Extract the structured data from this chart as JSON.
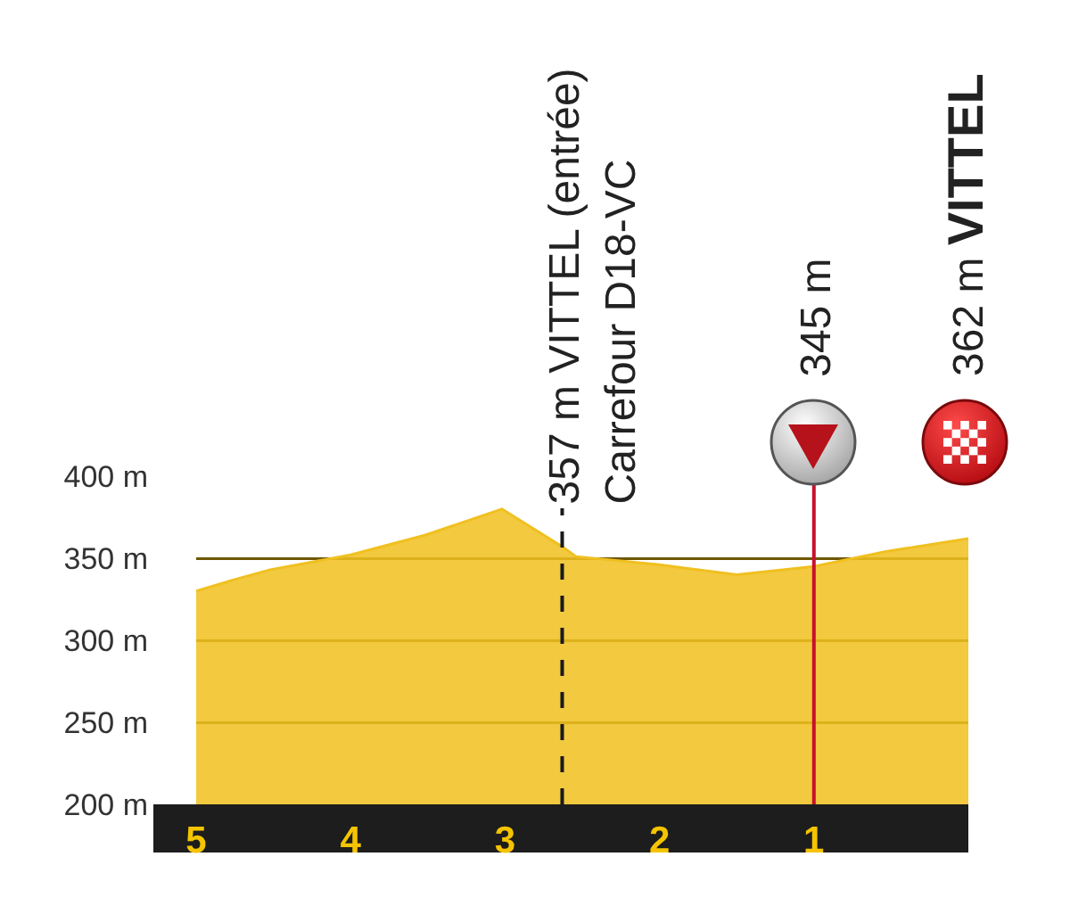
{
  "chart_data": {
    "type": "area",
    "x": [
      5,
      4.75,
      4.52,
      4.0,
      3.52,
      3.02,
      2.63,
      2.54,
      2.0,
      1.5,
      1.0,
      0.54,
      0
    ],
    "values": [
      330,
      337,
      343,
      352,
      364,
      380,
      357,
      351,
      346,
      340,
      345,
      354,
      362
    ],
    "color": "#f0c020",
    "xlim": [
      5,
      0
    ],
    "xticks": [
      5,
      4,
      3,
      2,
      1
    ],
    "ylim": [
      200,
      400
    ],
    "yticks": [
      {
        "value": 200,
        "label": "200 m"
      },
      {
        "value": 250,
        "label": "250 m"
      },
      {
        "value": 300,
        "label": "300 m"
      },
      {
        "value": 350,
        "label": "350 m"
      },
      {
        "value": 400,
        "label": "400 m"
      }
    ],
    "grid": "y",
    "ref_lines": [
      {
        "axis": "x",
        "value": 2.63,
        "label": "357 m VITTEL (entrée)\nCarrefour D18-VC",
        "color": "#1a1a1a",
        "line_style": "dashed"
      },
      {
        "axis": "x",
        "value": 1,
        "label": "345 m",
        "color": "#c8102e"
      }
    ],
    "annotations": [
      "362 m VITTEL"
    ]
  }
}
